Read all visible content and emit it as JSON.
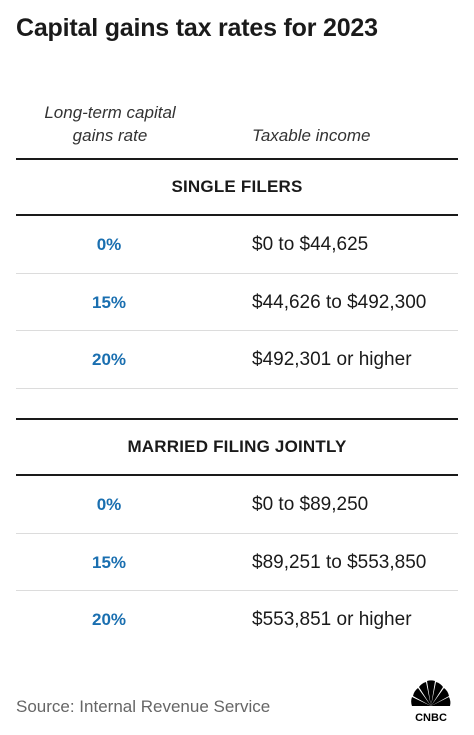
{
  "title": "Capital gains tax rates for 2023",
  "columns": {
    "rate_header": "Long-term capital gains rate",
    "income_header": "Taxable income"
  },
  "sections": [
    {
      "name": "SINGLE FILERS",
      "rows": [
        {
          "rate": "0%",
          "income": "$0 to $44,625"
        },
        {
          "rate": "15%",
          "income": "$44,626 to $492,300"
        },
        {
          "rate": "20%",
          "income": "$492,301 or higher"
        }
      ]
    },
    {
      "name": "MARRIED FILING JOINTLY",
      "rows": [
        {
          "rate": "0%",
          "income": "$0 to $89,250"
        },
        {
          "rate": "15%",
          "income": "$89,251 to $553,850"
        },
        {
          "rate": "20%",
          "income": "$553,851 or higher"
        }
      ]
    }
  ],
  "source": "Source: Internal Revenue Service",
  "logo": {
    "text": "CNBC"
  },
  "colors": {
    "rate": "#1a6fb0",
    "text": "#1a1a1a",
    "source": "#666666"
  },
  "chart_data": {
    "type": "table",
    "title": "Capital gains tax rates for 2023",
    "columns": [
      "Long-term capital gains rate",
      "Taxable income"
    ],
    "groups": [
      {
        "name": "SINGLE FILERS",
        "rows": [
          [
            "0%",
            "$0 to $44,625"
          ],
          [
            "15%",
            "$44,626 to $492,300"
          ],
          [
            "20%",
            "$492,301 or higher"
          ]
        ]
      },
      {
        "name": "MARRIED FILING JOINTLY",
        "rows": [
          [
            "0%",
            "$0 to $89,250"
          ],
          [
            "15%",
            "$89,251 to $553,850"
          ],
          [
            "20%",
            "$553,851 or higher"
          ]
        ]
      }
    ]
  }
}
